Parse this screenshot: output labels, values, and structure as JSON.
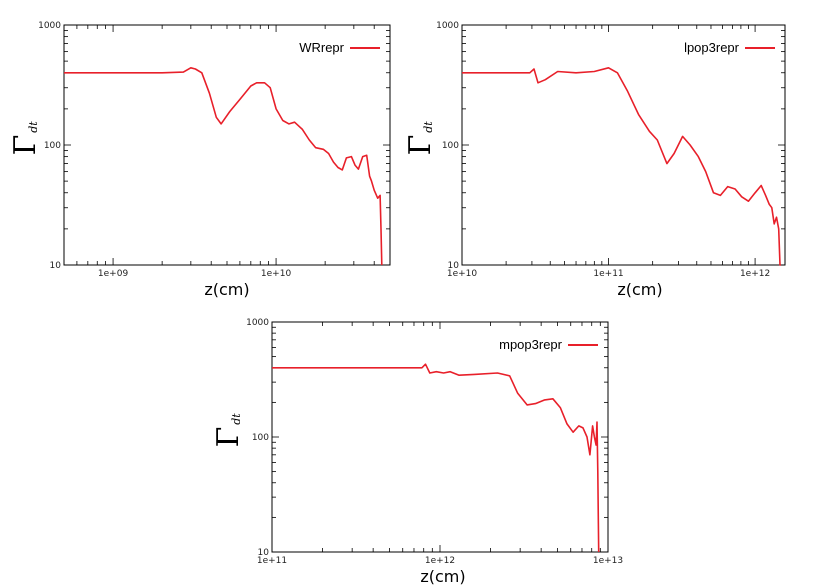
{
  "chart_data": [
    {
      "type": "line",
      "xscale": "log",
      "yscale": "log",
      "xlim": [
        500000000.0,
        50000000000.0
      ],
      "ylim": [
        10,
        1000
      ],
      "xlabel": "z(cm)",
      "ylabel": "Γ",
      "ylabel_sub": "dt",
      "yticks": [
        {
          "v": 1000,
          "label": "1000"
        },
        {
          "v": 100,
          "label": "100"
        },
        {
          "v": 10,
          "label": "10"
        }
      ],
      "xticks": [
        {
          "v": 1000000000.0,
          "label": "1e+09"
        },
        {
          "v": 10000000000.0,
          "label": "1e+10"
        }
      ],
      "legend": "top-right",
      "series": [
        {
          "name": "WRrepr",
          "color": "#e8202a",
          "x": [
            500000000.0,
            1000000000.0,
            2000000000.0,
            2700000000.0,
            3000000000.0,
            3200000000.0,
            3500000000.0,
            3900000000.0,
            4300000000.0,
            4600000000.0,
            5200000000.0,
            6000000000.0,
            7000000000.0,
            7600000000.0,
            8500000000.0,
            9200000000.0,
            10000000000.0,
            11000000000.0,
            12000000000.0,
            13000000000.0,
            14500000000.0,
            16000000000.0,
            17500000000.0,
            19500000000.0,
            21000000000.0,
            22500000000.0,
            24000000000.0,
            25500000000.0,
            27000000000.0,
            29000000000.0,
            30500000000.0,
            32000000000.0,
            34000000000.0,
            36000000000.0,
            37500000000.0,
            38500000000.0,
            40000000000.0,
            42000000000.0,
            43500000000.0,
            44000000000.0,
            44500000000.0
          ],
          "y": [
            400,
            400,
            400,
            405,
            440,
            430,
            400,
            270,
            170,
            150,
            190,
            240,
            310,
            330,
            330,
            300,
            200,
            160,
            150,
            155,
            135,
            110,
            95,
            92,
            85,
            72,
            65,
            62,
            78,
            80,
            68,
            63,
            80,
            82,
            55,
            50,
            42,
            36,
            38,
            20,
            10
          ]
        }
      ]
    },
    {
      "type": "line",
      "xscale": "log",
      "yscale": "log",
      "xlim": [
        10000000000.0,
        1600000000000.0
      ],
      "ylim": [
        10,
        1000
      ],
      "xlabel": "z(cm)",
      "ylabel": "Γ",
      "ylabel_sub": "dt",
      "yticks": [
        {
          "v": 1000,
          "label": "1000"
        },
        {
          "v": 100,
          "label": "100"
        },
        {
          "v": 10,
          "label": "10"
        }
      ],
      "xticks": [
        {
          "v": 10000000000.0,
          "label": "1e+10"
        },
        {
          "v": 100000000000.0,
          "label": "1e+11"
        },
        {
          "v": 1000000000000.0,
          "label": "1e+12"
        }
      ],
      "legend": "top-right",
      "series": [
        {
          "name": "lpop3repr",
          "color": "#e8202a",
          "x": [
            10000000000.0,
            20000000000.0,
            29000000000.0,
            31000000000.0,
            33000000000.0,
            37000000000.0,
            45000000000.0,
            60000000000.0,
            80000000000.0,
            100000000000.0,
            115000000000.0,
            135000000000.0,
            160000000000.0,
            190000000000.0,
            215000000000.0,
            250000000000.0,
            280000000000.0,
            320000000000.0,
            360000000000.0,
            410000000000.0,
            460000000000.0,
            520000000000.0,
            580000000000.0,
            650000000000.0,
            730000000000.0,
            810000000000.0,
            900000000000.0,
            1000000000000.0,
            1100000000000.0,
            1180000000000.0,
            1250000000000.0,
            1300000000000.0,
            1350000000000.0,
            1400000000000.0,
            1450000000000.0,
            1480000000000.0,
            1500000000000.0
          ],
          "y": [
            400,
            400,
            400,
            430,
            330,
            350,
            410,
            400,
            410,
            440,
            400,
            280,
            180,
            130,
            110,
            70,
            85,
            118,
            100,
            80,
            60,
            40,
            38,
            45,
            43,
            37,
            34,
            40,
            46,
            38,
            32,
            30,
            22,
            25,
            20,
            10,
            10
          ]
        }
      ]
    },
    {
      "type": "line",
      "xscale": "log",
      "yscale": "log",
      "xlim": [
        100000000000.0,
        10000000000000.0
      ],
      "ylim": [
        10,
        1000
      ],
      "xlabel": "z(cm)",
      "ylabel": "Γ",
      "ylabel_sub": "dt",
      "yticks": [
        {
          "v": 1000,
          "label": "1000"
        },
        {
          "v": 100,
          "label": "100"
        },
        {
          "v": 10,
          "label": "10"
        }
      ],
      "xticks": [
        {
          "v": 100000000000.0,
          "label": "1e+11"
        },
        {
          "v": 1000000000000.0,
          "label": "1e+12"
        },
        {
          "v": 10000000000000.0,
          "label": "1e+13"
        }
      ],
      "legend": "top-right",
      "series": [
        {
          "name": "mpop3repr",
          "color": "#e8202a",
          "x": [
            100000000000.0,
            500000000000.0,
            780000000000.0,
            820000000000.0,
            870000000000.0,
            950000000000.0,
            1050000000000.0,
            1150000000000.0,
            1300000000000.0,
            1600000000000.0,
            2200000000000.0,
            2600000000000.0,
            2900000000000.0,
            3300000000000.0,
            3700000000000.0,
            4200000000000.0,
            4700000000000.0,
            5200000000000.0,
            5700000000000.0,
            6200000000000.0,
            6700000000000.0,
            7100000000000.0,
            7500000000000.0,
            7800000000000.0,
            8100000000000.0,
            8300000000000.0,
            8500000000000.0,
            8600000000000.0,
            8700000000000.0,
            8750000000000.0,
            8800000000000.0
          ],
          "y": [
            400,
            400,
            400,
            430,
            360,
            370,
            360,
            370,
            345,
            350,
            360,
            340,
            240,
            190,
            195,
            210,
            215,
            180,
            130,
            110,
            125,
            120,
            100,
            70,
            125,
            100,
            85,
            135,
            50,
            20,
            10
          ]
        }
      ]
    }
  ]
}
